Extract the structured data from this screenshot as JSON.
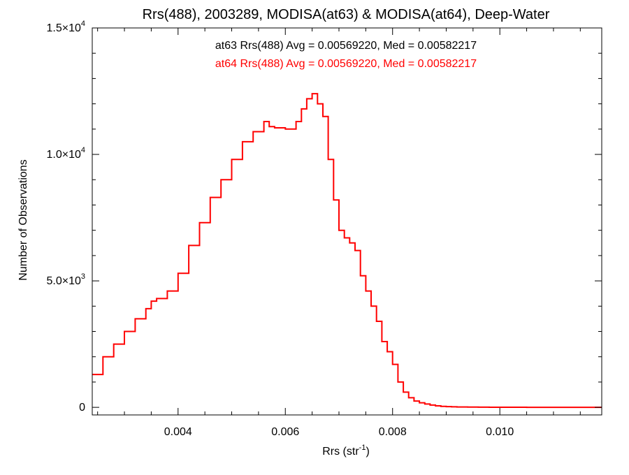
{
  "chart_data": {
    "type": "line",
    "style": "step",
    "title": "Rrs(488), 2003289, MODISA(at63) & MODISA(at64), Deep-Water",
    "xlabel": "Rrs (str",
    "xlabel_sup": "-1",
    "xlabel_close": ")",
    "ylabel": "Number of Observations",
    "xlim": [
      0.0024,
      0.0119
    ],
    "ylim": [
      -300,
      15000
    ],
    "x_ticks": [
      {
        "value": 0.004,
        "label": "0.004"
      },
      {
        "value": 0.006,
        "label": "0.006"
      },
      {
        "value": 0.008,
        "label": "0.008"
      },
      {
        "value": 0.01,
        "label": "0.010"
      }
    ],
    "y_ticks": [
      {
        "value": 0,
        "mant": "0",
        "exp": ""
      },
      {
        "value": 5000,
        "mant": "5.0×10",
        "exp": "3"
      },
      {
        "value": 10000,
        "mant": "1.0×10",
        "exp": "4"
      },
      {
        "value": 15000,
        "mant": "1.5×10",
        "exp": "4"
      }
    ],
    "annotations": [
      {
        "text": "at63 Rrs(488) Avg = 0.00569220, Med = 0.00582217",
        "color": "#000000"
      },
      {
        "text": "at64 Rrs(488) Avg = 0.00569220, Med = 0.00582217",
        "color": "#ff0000"
      }
    ],
    "series": [
      {
        "color": "#ff0000",
        "x": [
          0.0024,
          0.0026,
          0.0028,
          0.003,
          0.0032,
          0.0034,
          0.0035,
          0.0036,
          0.0038,
          0.004,
          0.0042,
          0.0044,
          0.0046,
          0.0048,
          0.005,
          0.0052,
          0.0054,
          0.0056,
          0.0057,
          0.0058,
          0.006,
          0.0062,
          0.0063,
          0.0064,
          0.0065,
          0.0066,
          0.0067,
          0.0068,
          0.0069,
          0.007,
          0.0071,
          0.0072,
          0.0073,
          0.0074,
          0.0075,
          0.0076,
          0.0077,
          0.0078,
          0.0079,
          0.008,
          0.0081,
          0.0082,
          0.0083,
          0.0084,
          0.0085,
          0.0086,
          0.0087,
          0.0088,
          0.0089,
          0.009,
          0.0091,
          0.0092,
          0.0094,
          0.0096,
          0.0098,
          0.01,
          0.0105,
          0.011,
          0.0119
        ],
        "y": [
          1300,
          2000,
          2500,
          3000,
          3500,
          3900,
          4200,
          4300,
          4600,
          5300,
          6400,
          7300,
          8300,
          9000,
          9800,
          10500,
          10900,
          11300,
          11100,
          11050,
          11000,
          11300,
          11800,
          12200,
          12400,
          12000,
          11500,
          9800,
          8200,
          7000,
          6700,
          6500,
          6200,
          5200,
          4600,
          4000,
          3400,
          2600,
          2200,
          1700,
          1000,
          600,
          380,
          250,
          180,
          130,
          90,
          60,
          40,
          30,
          20,
          15,
          10,
          6,
          4,
          3,
          2,
          1,
          0
        ]
      }
    ]
  }
}
